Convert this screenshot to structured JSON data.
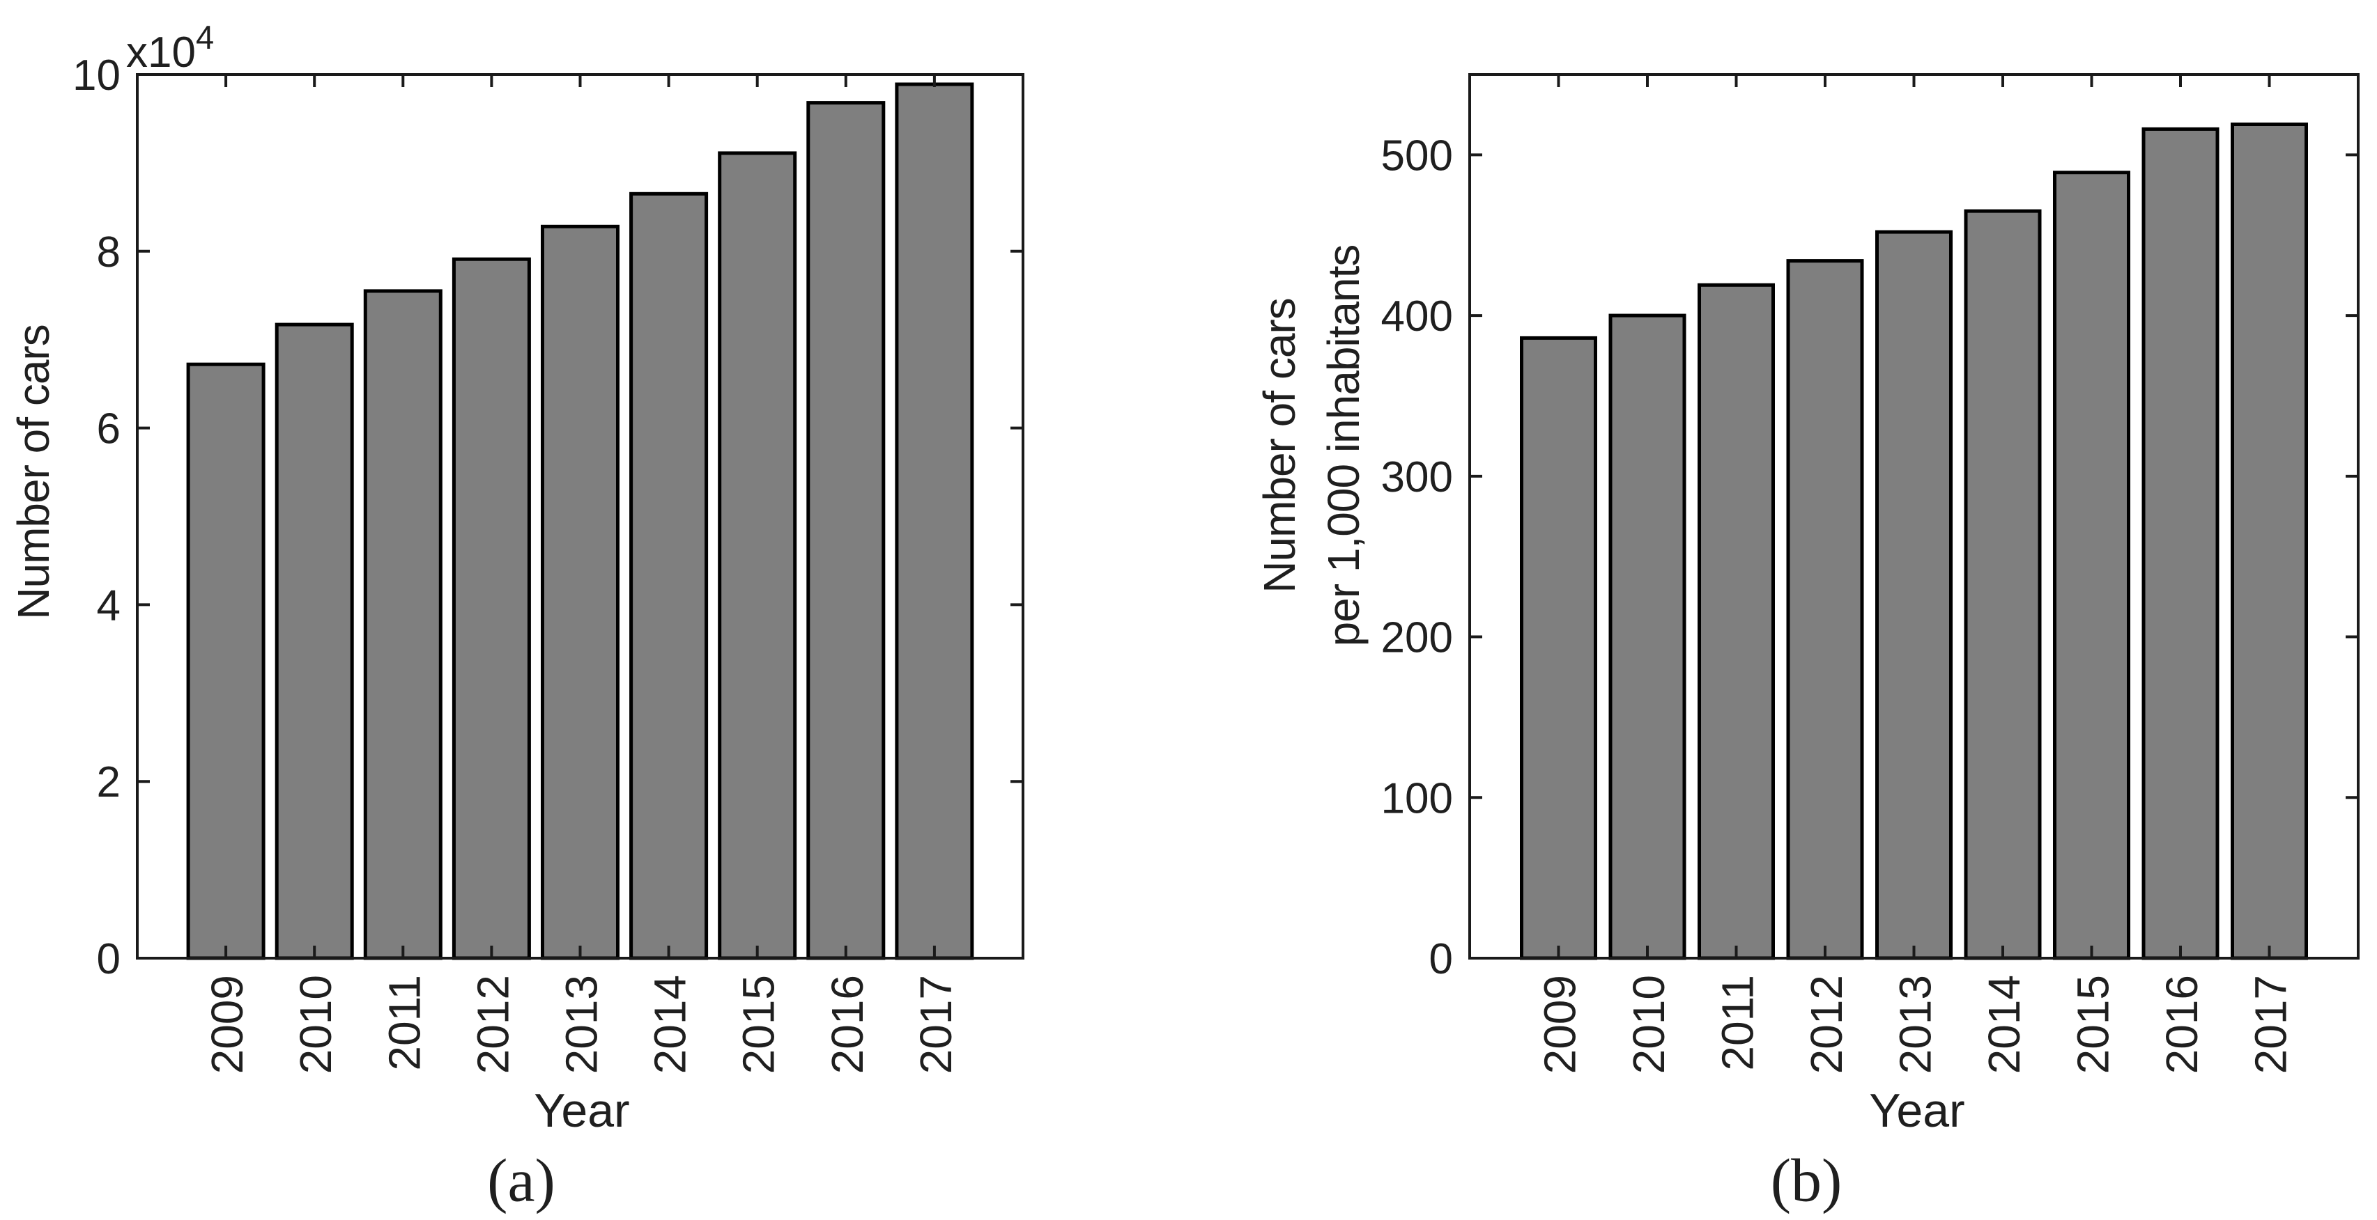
{
  "figure": {
    "background": "#ffffff",
    "description": "Two-panel bar chart figure"
  },
  "chart_data": [
    {
      "type": "bar",
      "panel": "a",
      "caption": "(a)",
      "categories": [
        "2009",
        "2010",
        "2011",
        "2012",
        "2013",
        "2014",
        "2015",
        "2016",
        "2017"
      ],
      "values": [
        67200,
        71700,
        75500,
        79100,
        82800,
        86500,
        91100,
        96800,
        98900
      ],
      "xlabel": "Year",
      "ylabel_lines": [
        "Number of cars"
      ],
      "offset_text": "x10",
      "offset_exponent": "4",
      "xlim": [
        0,
        10
      ],
      "ylim": [
        0,
        100000
      ],
      "yticks": [
        0,
        20000,
        40000,
        60000,
        80000,
        100000
      ],
      "ytick_labels": [
        "0",
        "2",
        "4",
        "6",
        "8",
        "10"
      ],
      "xtick_rotation_deg": 90,
      "grid": false,
      "legend": "none",
      "bar_fill": "#7f7f7f",
      "bar_edge": "#000000",
      "axis_color": "#1a1a1a",
      "text_color": "#1f1f1f"
    },
    {
      "type": "bar",
      "panel": "b",
      "caption": "(b)",
      "categories": [
        "2009",
        "2010",
        "2011",
        "2012",
        "2013",
        "2014",
        "2015",
        "2016",
        "2017"
      ],
      "values": [
        386,
        400,
        419,
        434,
        452,
        465,
        489,
        516,
        519
      ],
      "xlabel": "Year",
      "ylabel_lines": [
        "Number of cars",
        "per 1,000 inhabitants"
      ],
      "offset_text": "",
      "offset_exponent": "",
      "xlim": [
        0,
        10
      ],
      "ylim": [
        0,
        550
      ],
      "yticks": [
        0,
        100,
        200,
        300,
        400,
        500
      ],
      "ytick_labels": [
        "0",
        "100",
        "200",
        "300",
        "400",
        "500"
      ],
      "xtick_rotation_deg": 90,
      "grid": false,
      "legend": "none",
      "bar_fill": "#7f7f7f",
      "bar_edge": "#000000",
      "axis_color": "#1a1a1a",
      "text_color": "#1f1f1f"
    }
  ]
}
